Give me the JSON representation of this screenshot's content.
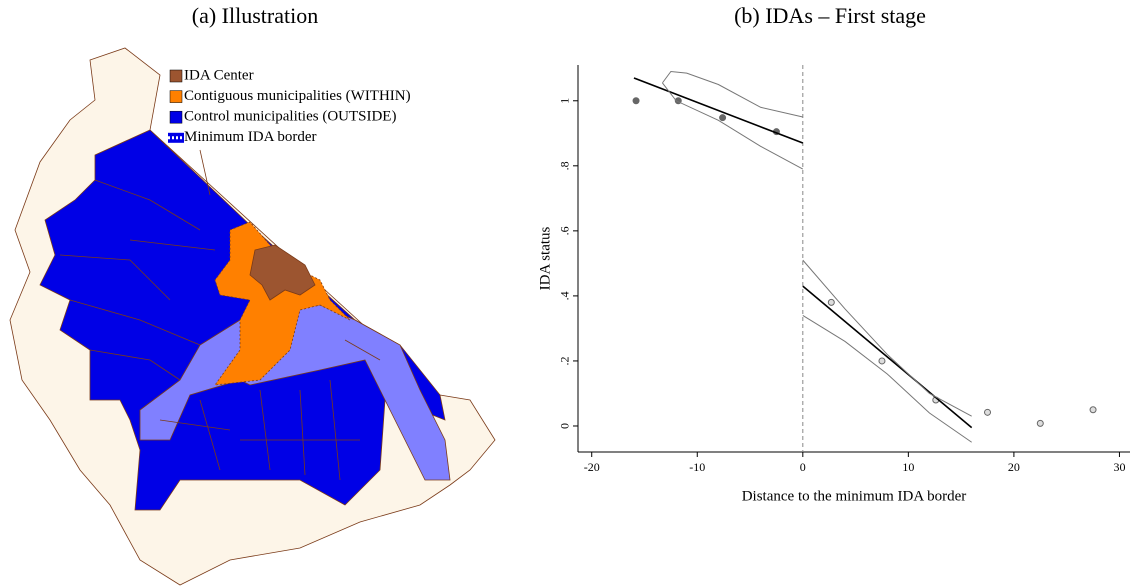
{
  "chart_data": [
    {
      "type": "map",
      "title": "(a) Illustration",
      "legend": [
        {
          "name": "IDA Center",
          "color": "#9c5530",
          "style": "box"
        },
        {
          "name": "Contiguous municipalities (WITHIN)",
          "color": "#ff8000",
          "style": "box"
        },
        {
          "name": "Control municipalities (OUTSIDE)",
          "color": "#0000e6",
          "style": "box"
        },
        {
          "name": "Minimum IDA border",
          "color": "#ffffff",
          "style": "dotted"
        }
      ]
    },
    {
      "type": "scatter",
      "title": "(b) IDAs – First stage",
      "x_label": "Distance to the minimum IDA border",
      "y_label": "IDA status",
      "xlim": [
        -21.3,
        31
      ],
      "ylim": [
        -0.08,
        1.11
      ],
      "xticks": [
        -20,
        -10,
        0,
        10,
        20,
        30
      ],
      "yticks": [
        0,
        {
          "value": 0.2,
          "label": ".2"
        },
        {
          "value": 0.4,
          "label": ".4"
        },
        {
          "value": 0.6,
          "label": ".6"
        },
        {
          "value": 0.8,
          "label": ".8"
        },
        1
      ],
      "vline": 0,
      "series": [
        {
          "style": "points",
          "color": "#666666",
          "fill": true,
          "x": [
            -15.8,
            -11.8,
            -7.6,
            -2.5
          ],
          "values": [
            1.0,
            1.0,
            0.948,
            0.905
          ]
        },
        {
          "style": "points",
          "color": "#666666",
          "fill": false,
          "x": [
            2.7,
            7.5,
            12.6,
            17.5,
            22.5,
            27.5
          ],
          "values": [
            0.38,
            0.2,
            0.08,
            0.042,
            0.008,
            0.05
          ]
        },
        {
          "style": "line",
          "color": "#000000",
          "x": [
            -16,
            0
          ],
          "values": [
            1.07,
            0.87
          ]
        },
        {
          "style": "line",
          "color": "#000000",
          "x": [
            0,
            16
          ],
          "values": [
            0.43,
            -0.005
          ]
        },
        {
          "style": "ci",
          "color": "#777777",
          "x": [
            -13.3,
            -12.5,
            -11,
            -8,
            -4,
            0
          ],
          "values": [
            1.055,
            1.09,
            1.085,
            1.05,
            0.98,
            0.95
          ]
        },
        {
          "style": "ci",
          "color": "#777777",
          "x": [
            -13.3,
            -12,
            -8,
            -4,
            0
          ],
          "values": [
            1.055,
            1.0,
            0.94,
            0.86,
            0.79
          ]
        },
        {
          "style": "ci",
          "color": "#777777",
          "x": [
            0,
            4,
            8,
            12,
            16
          ],
          "values": [
            0.51,
            0.36,
            0.22,
            0.1,
            0.03
          ]
        },
        {
          "style": "ci",
          "color": "#777777",
          "x": [
            0,
            4,
            8,
            12,
            16
          ],
          "values": [
            0.34,
            0.26,
            0.16,
            0.04,
            -0.05
          ]
        }
      ]
    }
  ]
}
